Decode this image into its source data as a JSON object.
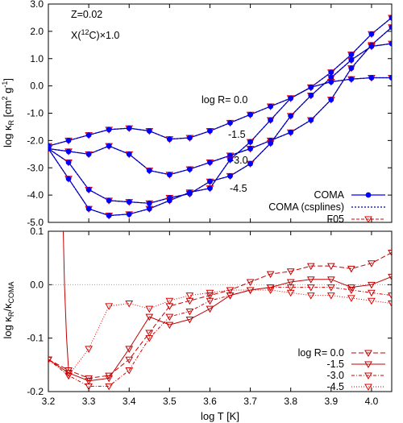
{
  "chart_data": [
    {
      "type": "line",
      "panel": "top",
      "xlabel": "",
      "ylabel": "log κR [cm² g⁻¹]",
      "ylim": [
        -5.0,
        3.0
      ],
      "yticks": [
        -5.0,
        -4.0,
        -3.0,
        -2.0,
        -1.0,
        0.0,
        1.0,
        2.0,
        3.0
      ],
      "ytick_labels": [
        "-5.0",
        "-4.0",
        "-3.0",
        "-2.0",
        "-1.0",
        "0.0",
        "1.0",
        "2.0",
        "3.0"
      ],
      "xlim": [
        3.2,
        4.05
      ],
      "annotations": {
        "z": "Z=0.02",
        "x12c_prefix": "X(",
        "x12c_sup": "12",
        "x12c_suffix": "C)×1.0",
        "r0": "log R= 0.0",
        "r15": "-1.5",
        "r30": "-3.0",
        "r45": "-4.5"
      },
      "legend": {
        "position": "bottom-right",
        "entries": [
          "COMA",
          "COMA (csplines)",
          "F05"
        ]
      },
      "x": [
        3.2,
        3.25,
        3.3,
        3.35,
        3.4,
        3.45,
        3.5,
        3.55,
        3.6,
        3.65,
        3.7,
        3.75,
        3.8,
        3.85,
        3.9,
        3.95,
        4.0,
        4.05
      ],
      "series": [
        {
          "name": "log R= 0.0",
          "values": [
            -2.2,
            -2.0,
            -1.8,
            -1.6,
            -1.55,
            -1.65,
            -1.95,
            -1.9,
            -1.65,
            -1.35,
            -1.05,
            -0.75,
            -0.45,
            -0.05,
            0.5,
            1.15,
            1.9,
            2.5
          ]
        },
        {
          "name": "-1.5",
          "values": [
            -2.3,
            -2.4,
            -2.5,
            -2.2,
            -2.5,
            -3.1,
            -3.25,
            -3.05,
            -2.8,
            -2.55,
            -2.3,
            -2.0,
            -1.7,
            -1.25,
            -0.5,
            0.65,
            1.5,
            2.15
          ]
        },
        {
          "name": "-3.0",
          "values": [
            -2.3,
            -2.8,
            -3.8,
            -4.2,
            -4.25,
            -4.3,
            -4.1,
            -3.95,
            -3.5,
            -3.3,
            -2.85,
            -2.1,
            -1.1,
            -0.35,
            0.3,
            0.95,
            1.45,
            1.55
          ]
        },
        {
          "name": "-4.5",
          "values": [
            -2.3,
            -3.4,
            -4.5,
            -4.75,
            -4.7,
            -4.5,
            -4.2,
            -3.9,
            -3.75,
            -2.7,
            -2.05,
            -1.25,
            -0.45,
            -0.05,
            0.15,
            0.25,
            0.3,
            0.3
          ]
        }
      ]
    },
    {
      "type": "line",
      "panel": "bottom",
      "xlabel": "log T [K]",
      "ylabel": "log κR/κCOMA",
      "ylim": [
        -0.2,
        0.1
      ],
      "yticks": [
        -0.2,
        -0.1,
        0.0,
        0.1
      ],
      "ytick_labels": [
        "-0.2",
        "-0.1",
        "0.0",
        "0.1"
      ],
      "xlim": [
        3.2,
        4.05
      ],
      "xticks": [
        3.2,
        3.3,
        3.4,
        3.5,
        3.6,
        3.7,
        3.8,
        3.9,
        4.0
      ],
      "xtick_labels": [
        "3.2",
        "3.3",
        "3.4",
        "3.5",
        "3.6",
        "3.7",
        "3.8",
        "3.9",
        "4.0"
      ],
      "legend": {
        "position": "bottom-right",
        "entries": [
          "log R= 0.0",
          "-1.5",
          "-3.0",
          "-4.5"
        ]
      },
      "x": [
        3.2,
        3.25,
        3.3,
        3.35,
        3.4,
        3.45,
        3.5,
        3.55,
        3.6,
        3.65,
        3.7,
        3.75,
        3.8,
        3.85,
        3.9,
        3.95,
        4.0,
        4.05
      ],
      "series": [
        {
          "name": "log R= 0.0",
          "values": [
            -0.14,
            -0.16,
            -0.175,
            -0.17,
            -0.14,
            -0.09,
            -0.04,
            -0.03,
            -0.02,
            -0.01,
            0.005,
            0.02,
            0.025,
            0.035,
            0.035,
            0.03,
            0.04,
            0.06
          ]
        },
        {
          "name": "-1.5",
          "values": [
            -0.14,
            -0.165,
            -0.18,
            -0.175,
            -0.12,
            -0.06,
            -0.075,
            -0.065,
            -0.045,
            -0.02,
            -0.01,
            -0.005,
            0.005,
            0.01,
            0.01,
            -0.005,
            0.0,
            0.015
          ]
        },
        {
          "name": "-3.0",
          "values": [
            -0.14,
            -0.17,
            -0.19,
            -0.19,
            -0.16,
            -0.1,
            -0.06,
            -0.05,
            -0.03,
            -0.02,
            -0.01,
            -0.005,
            -0.005,
            -0.005,
            -0.005,
            -0.01,
            -0.015,
            -0.02
          ]
        },
        {
          "name": "-4.5",
          "values": [
            -0.14,
            -0.17,
            -0.12,
            -0.04,
            -0.035,
            -0.045,
            -0.03,
            -0.02,
            -0.015,
            -0.01,
            -0.01,
            -0.01,
            -0.015,
            -0.02,
            -0.02,
            -0.025,
            -0.03,
            -0.035
          ]
        }
      ],
      "extra_curve_name": "log R= 0.0",
      "extra_curve": {
        "x": [
          3.237,
          3.24,
          3.245,
          3.25
        ],
        "values": [
          0.1,
          0.0,
          -0.1,
          -0.16
        ]
      }
    }
  ],
  "colors": {
    "coma": "#0000ff",
    "csplines": "#000080",
    "f05": "#e00000",
    "r00": "#c00000",
    "r15": "#c00000",
    "r30": "#d00000",
    "r45": "#e00000",
    "zero_line": "#999999"
  }
}
